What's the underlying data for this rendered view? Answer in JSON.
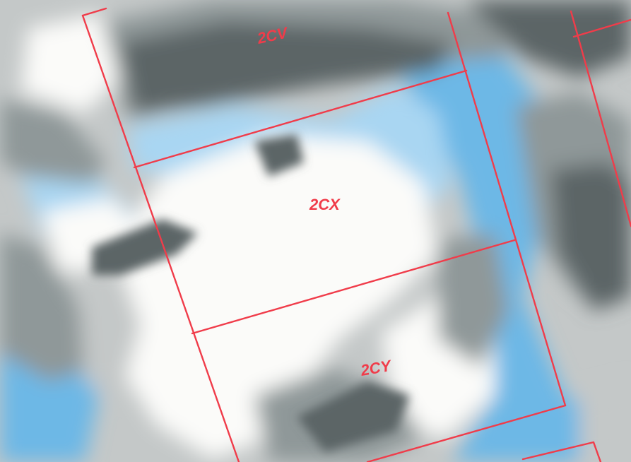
{
  "map": {
    "line_color": "#f03c4a",
    "label_color": "#f03c4a",
    "imagery_colors": {
      "sky_blue": "#6db8e6",
      "light_blue": "#a9d6f2",
      "white": "#fbfbf9",
      "light_gray": "#c4c8c8",
      "mid_gray": "#8f9899",
      "dark_gray": "#5b6566"
    }
  },
  "parcels": [
    {
      "id": "2cv",
      "label": "2CV"
    },
    {
      "id": "2cx",
      "label": "2CX"
    },
    {
      "id": "2cy",
      "label": "2CY"
    }
  ]
}
